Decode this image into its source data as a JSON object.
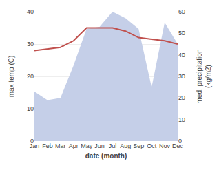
{
  "chart_data": {
    "type": "line",
    "xlabel": "date (month)",
    "ylabel": "max temp (C)",
    "y2label": "med. precipitation\n(kg/m2)",
    "categories": [
      "Jan",
      "Feb",
      "Mar",
      "Apr",
      "May",
      "Jun",
      "Jul",
      "Aug",
      "Sep",
      "Oct",
      "Nov",
      "Dec"
    ],
    "series": [
      {
        "type": "area",
        "axis": "y2",
        "color": "#c5cfe8",
        "values": [
          23,
          19,
          20,
          35,
          52,
          53,
          60,
          57,
          52,
          25,
          55,
          45
        ]
      },
      {
        "type": "line",
        "axis": "y",
        "color": "#c0504d",
        "values": [
          28,
          28.5,
          29,
          31,
          35,
          35,
          35,
          34,
          32,
          31.5,
          31,
          30
        ]
      }
    ],
    "ylim": [
      0,
      40
    ],
    "yticks": [
      0,
      10,
      20,
      30,
      40
    ],
    "y2lim": [
      0,
      60
    ],
    "y2ticks": [
      0,
      10,
      20,
      30,
      40,
      50,
      60
    ],
    "grid": true
  }
}
